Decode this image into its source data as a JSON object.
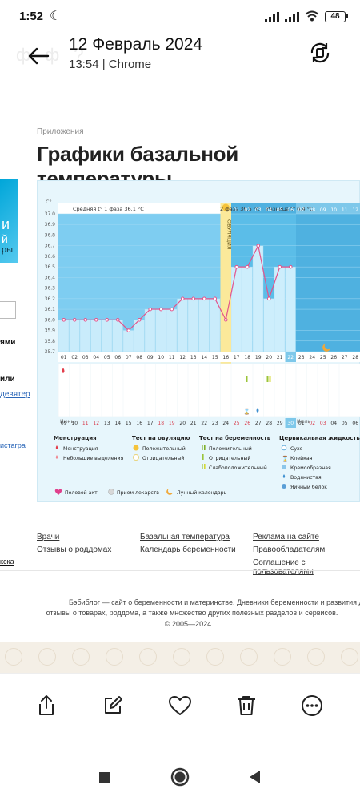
{
  "status": {
    "time": "1:52",
    "battery": "48"
  },
  "app_bar": {
    "title": "12 Февраль 2024",
    "subtitle": "13:54 | Chrome",
    "ghost_text": "фф?"
  },
  "page": {
    "breadcrumb": "Приложения",
    "title": "Графики базальной температуры",
    "left_fragments": [
      "и",
      "й",
      "ры",
      "ями",
      "или",
      "девятер",
      "истагра",
      "кска"
    ]
  },
  "chart": {
    "axis_unit": "C°",
    "phase1_label": "Средняя t° 1 фаза 36.1 °C",
    "phase2_label": "2 фаза 36.5 °C",
    "difference_label": "Разница t° 0.4 °C",
    "ovulation_label": "ОВУЛЯЦИЯ",
    "y_ticks": [
      "37.0",
      "36.9",
      "36.8",
      "36.7",
      "36.6",
      "36.5",
      "36.4",
      "36.3",
      "36.2",
      "36.1",
      "36.0",
      "35.9",
      "35.8",
      "35.7"
    ],
    "cycle_days": [
      "01",
      "02",
      "03",
      "04",
      "05",
      "06",
      "07",
      "08",
      "09",
      "10",
      "11",
      "12",
      "13",
      "14",
      "15",
      "16",
      "17",
      "18",
      "19",
      "20",
      "21",
      "22",
      "23",
      "24",
      "25",
      "26",
      "27",
      "28",
      "29",
      "30",
      "31"
    ],
    "top_days": [
      "01",
      "02",
      "03",
      "04",
      "05",
      "06",
      "07",
      "08",
      "09",
      "10",
      "11",
      "12",
      "13",
      "14"
    ],
    "month_first": "Июнь",
    "month_second": "Июль",
    "calendar_dates": [
      "09",
      "10",
      "11",
      "12",
      "13",
      "14",
      "15",
      "16",
      "17",
      "18",
      "19",
      "20",
      "21",
      "22",
      "23",
      "24",
      "25",
      "26",
      "27",
      "28",
      "29",
      "30",
      "01",
      "02",
      "03",
      "04",
      "05",
      "06",
      "07",
      "08",
      "09"
    ],
    "chart_data": {
      "type": "line",
      "title": "",
      "xlabel": "",
      "ylabel": "C°",
      "ylim": [
        35.7,
        37.0
      ],
      "x": [
        "01",
        "02",
        "03",
        "04",
        "05",
        "06",
        "07",
        "08",
        "09",
        "10",
        "11",
        "12",
        "13",
        "14",
        "15",
        "16",
        "17",
        "18",
        "19",
        "20",
        "21",
        "22"
      ],
      "series": [
        {
          "values": [
            36.0,
            36.0,
            36.0,
            36.0,
            36.0,
            36.0,
            35.9,
            36.0,
            36.1,
            36.1,
            36.1,
            36.2,
            36.2,
            36.2,
            36.2,
            36.0,
            36.5,
            36.5,
            36.7,
            36.2,
            36.5,
            36.5
          ]
        }
      ],
      "ovulation_day": "16",
      "current_day": "22"
    },
    "legend": {
      "menstruation_header": "Менструация",
      "menstruation": "Менструация",
      "spotting": "Небольшие выделения",
      "ovulation_test_header": "Тест на овуляцию",
      "positive": "Положительный",
      "negative": "Отрицательный",
      "pregnancy_test_header": "Тест на беременность",
      "preg_positive": "Положительный",
      "preg_negative": "Отрицательный",
      "preg_weak": "Слабоположительный",
      "cervical_header": "Цервикальная жидкость",
      "dry": "Сухо",
      "sticky": "Клейкая",
      "creamy": "Кремообразная",
      "watery": "Водянистая",
      "egg_white": "Яичный белок",
      "intercourse": "Половой акт",
      "medication": "Прием лекарств",
      "moon_calendar": "Лунный календарь"
    },
    "colors": {
      "phase1_bar": "#c9ecfb",
      "phase2_bar": "#6dc6ee",
      "ovulation": "#fbe99a",
      "line": "#e3538b",
      "menstruation": "#e23d4b"
    }
  },
  "footer": {
    "links": [
      "Врачи",
      "Отзывы о роддомах",
      "Базальная температура",
      "Календарь беременности",
      "Реклама на сайте",
      "Правообладателям",
      "Соглашение с пользователями"
    ],
    "about_line1": "Бэбиблог — сайт о беременности и материнстве. Дневники беременности и развития детей, календарь б",
    "about_line2": "отзывы о товарах, роддома, а также множество других полезных разделов и сервисов.",
    "copyright": "© 2005—2024"
  },
  "icons": {
    "back": "arrow-left-icon",
    "rotate": "screen-rotate-icon",
    "share": "share-icon",
    "edit": "edit-icon",
    "favorite": "heart-icon",
    "delete": "trash-icon",
    "more": "more-icon"
  }
}
